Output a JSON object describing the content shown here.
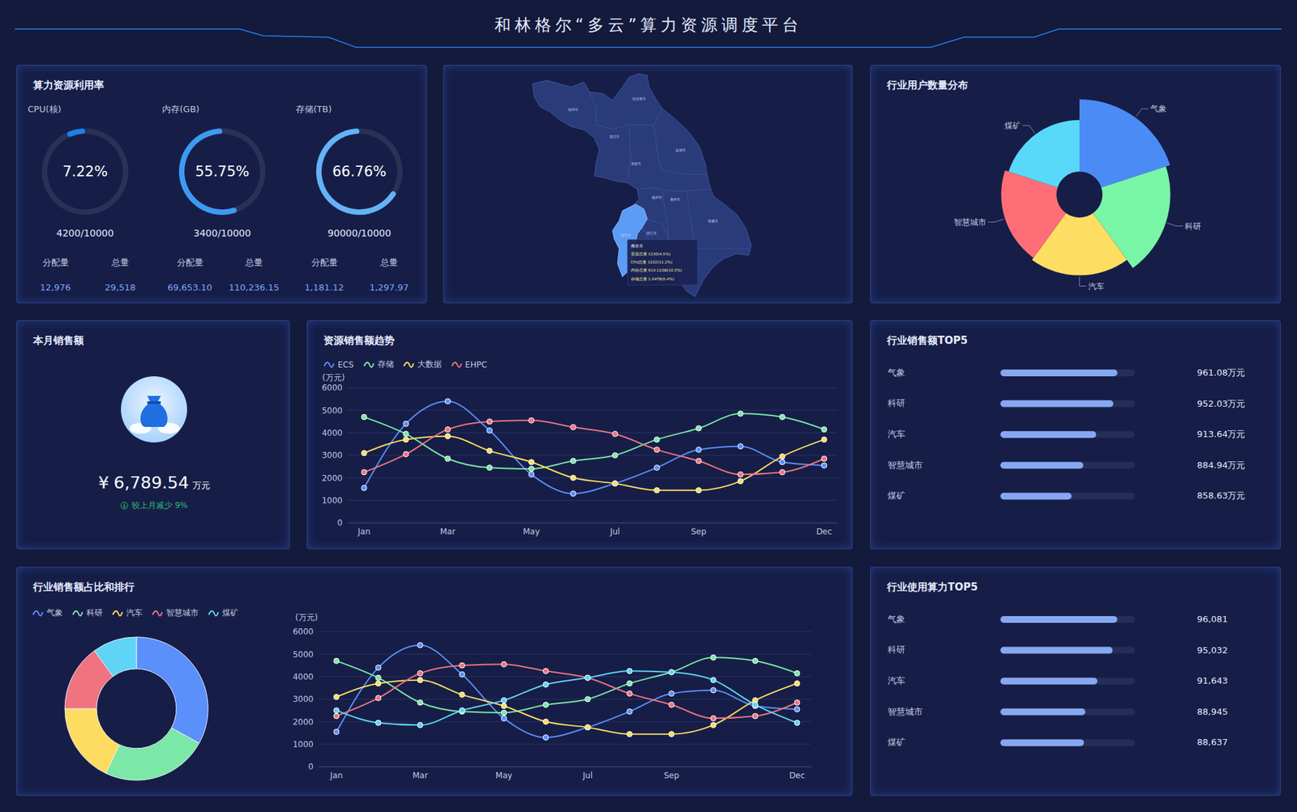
{
  "title": "和林格尔“多云”算力资源调度平台",
  "utilization": {
    "title": "算力资源利用率",
    "headers": [
      "分配量",
      "总量"
    ],
    "gauges": [
      {
        "name": "CPU(核)",
        "value": 7.22,
        "value_label": "7.22%",
        "range": [
          0,
          100
        ],
        "color": "#1e7fe8",
        "ratio": "4200/10000",
        "allocated": "12,976",
        "total": "29,518"
      },
      {
        "name": "内存(GB)",
        "value": 55.75,
        "value_label": "55.75%",
        "range": [
          0,
          100
        ],
        "color": "#3d9af2",
        "ratio": "3400/10000",
        "allocated": "69,653.10",
        "total": "110,236.15"
      },
      {
        "name": "存储(TB)",
        "value": 66.76,
        "value_label": "66.76%",
        "range": [
          0,
          100
        ],
        "color": "#63b3f7",
        "ratio": "90000/10000",
        "allocated": "1,181.12",
        "total": "1,297.97"
      }
    ]
  },
  "map": {
    "cities": [
      "徐州市",
      "连云港市",
      "宿迁市",
      "淮安市",
      "盐城市",
      "扬州市",
      "泰州市",
      "南通市",
      "南京市",
      "镇江市"
    ],
    "tooltip": {
      "title": "南京市",
      "lines": [
        "资源总量 1230(4.5%)",
        "CPU总量 1232(11.2%)",
        "内存总量 619.11GB(10.5%)",
        "存储总量 1.04TB(6.4%)"
      ]
    }
  },
  "monthly_sales": {
    "title": "本月销售额",
    "currency": "¥",
    "amount": "6,789.54",
    "unit": "万元",
    "change": "较上月减少 9%"
  },
  "chart_data": [
    {
      "type": "rose",
      "title": "行业用户数量分布",
      "categories": [
        "气象",
        "科研",
        "汽车",
        "智慧城市",
        "煤矿"
      ],
      "values": [
        115,
        108,
        92,
        88,
        82
      ],
      "colors": [
        "#4b8bf5",
        "#79f5a7",
        "#fedd63",
        "#ff6e76",
        "#58d9f9"
      ],
      "ylim": [
        0,
        115
      ]
    },
    {
      "type": "line",
      "title": "资源销售额趋势",
      "ylabel": "(万元)",
      "legend": "top-left",
      "grid": true,
      "marker": "circle",
      "categories": [
        "Jan",
        null,
        "Mar",
        null,
        "May",
        null,
        "Jul",
        null,
        "Sep",
        null,
        null,
        "Dec"
      ],
      "ylim": [
        0,
        6000
      ],
      "yticks": [
        0,
        1000,
        2000,
        3000,
        4000,
        5000,
        6000
      ],
      "series": [
        {
          "name": "ECS",
          "color": "#5b8ff9",
          "values": [
            1550,
            4400,
            5400,
            4100,
            2150,
            1300,
            1750,
            2450,
            3250,
            3400,
            2700,
            2550
          ]
        },
        {
          "name": "存储",
          "color": "#7be8a8",
          "values": [
            4700,
            3950,
            2850,
            2450,
            2400,
            2750,
            3000,
            3700,
            4200,
            4850,
            4700,
            4150
          ]
        },
        {
          "name": "大数据",
          "color": "#fddc61",
          "values": [
            3100,
            3700,
            3850,
            3200,
            2700,
            2000,
            1750,
            1450,
            1450,
            1850,
            2950,
            3700
          ]
        },
        {
          "name": "EHPC",
          "color": "#f07480",
          "values": [
            2250,
            3050,
            4150,
            4500,
            4550,
            4250,
            3950,
            3250,
            2750,
            2150,
            2250,
            2850
          ]
        }
      ]
    },
    {
      "type": "bar",
      "orientation": "horizontal",
      "title": "行业销售额TOP5",
      "categories": [
        "气象",
        "科研",
        "汽车",
        "智慧城市",
        "煤矿"
      ],
      "values": [
        961.08,
        952.03,
        913.64,
        884.94,
        858.63
      ],
      "value_labels": [
        "961.08万元",
        "952.03万元",
        "913.64万元",
        "884.94万元",
        "858.63万元"
      ],
      "data_labels": true,
      "xlim": [
        700,
        1000
      ],
      "tick_labels": "y",
      "color": "#86a8f2"
    },
    {
      "type": "line",
      "title": "行业销售额占比和排行",
      "ylabel": "(万元)",
      "legend": "top-left",
      "grid": true,
      "marker": "circle",
      "categories": [
        "Jan",
        null,
        "Mar",
        null,
        "May",
        null,
        "Jul",
        null,
        "Sep",
        null,
        null,
        "Dec"
      ],
      "ylim": [
        0,
        6000
      ],
      "yticks": [
        0,
        1000,
        2000,
        3000,
        4000,
        5000,
        6000
      ],
      "series": [
        {
          "name": "气象",
          "color": "#5b8ff9",
          "values": [
            1550,
            4400,
            5400,
            4100,
            2150,
            1300,
            1750,
            2450,
            3250,
            3400,
            2700,
            2550
          ]
        },
        {
          "name": "科研",
          "color": "#7be8a8",
          "values": [
            4700,
            3950,
            2850,
            2450,
            2400,
            2750,
            3000,
            3700,
            4200,
            4850,
            4700,
            4150
          ]
        },
        {
          "name": "汽车",
          "color": "#fddc61",
          "values": [
            3100,
            3700,
            3850,
            3200,
            2700,
            2000,
            1750,
            1450,
            1450,
            1850,
            2950,
            3700
          ]
        },
        {
          "name": "智慧城市",
          "color": "#f07480",
          "values": [
            2250,
            3050,
            4150,
            4500,
            4550,
            4250,
            3950,
            3250,
            2750,
            2150,
            2250,
            2850
          ]
        },
        {
          "name": "煤矿",
          "color": "#5fd4f4",
          "values": [
            2500,
            1950,
            1850,
            2500,
            2950,
            3650,
            3950,
            4250,
            4200,
            3850,
            2750,
            1950
          ]
        }
      ],
      "pie": {
        "type": "donut",
        "values": [
          33,
          24,
          18,
          15,
          10
        ]
      }
    },
    {
      "type": "bar",
      "orientation": "horizontal",
      "title": "行业使用算力TOP5",
      "categories": [
        "气象",
        "科研",
        "汽车",
        "智慧城市",
        "煤矿"
      ],
      "values": [
        96081,
        95032,
        91643,
        88945,
        88637
      ],
      "value_labels": [
        "96,081",
        "95,032",
        "91,643",
        "88,945",
        "88,637"
      ],
      "data_labels": true,
      "xlim": [
        70000,
        100000
      ],
      "tick_labels": "y",
      "color": "#86a8f2"
    }
  ]
}
